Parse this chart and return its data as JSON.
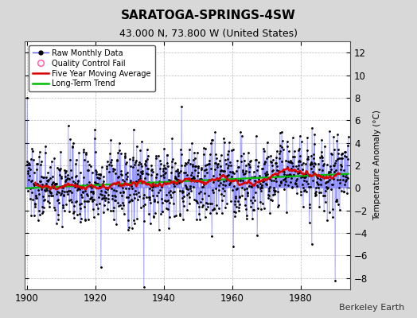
{
  "title": "SARATOGA-SPRINGS-4SW",
  "subtitle": "43.000 N, 73.800 W (United States)",
  "ylabel": "Temperature Anomaly (°C)",
  "credit": "Berkeley Earth",
  "year_start": 1900,
  "year_end": 1993,
  "ylim": [
    -9,
    13
  ],
  "yticks": [
    -8,
    -6,
    -4,
    -2,
    0,
    2,
    4,
    6,
    8,
    10,
    12
  ],
  "xticks": [
    1900,
    1920,
    1940,
    1960,
    1980
  ],
  "fig_bg_color": "#d8d8d8",
  "plot_bg_color": "#ffffff",
  "grid_color": "#bbbbbb",
  "raw_line_color": "#5555ff",
  "raw_dot_color": "#000000",
  "moving_avg_color": "#dd0000",
  "trend_color": "#00bb00",
  "qc_fail_color": "#ff69b4",
  "seed": 137
}
